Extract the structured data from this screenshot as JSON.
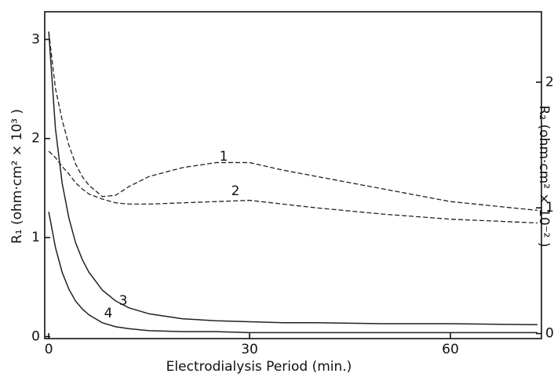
{
  "chart_data": {
    "type": "line",
    "xlabel": "Electrodialysis  Period (min.)",
    "ylabel": "R₁ (ohm·cm² × 10³ )",
    "y2label": "R₂ (ohm·cm² × 10⁻² )",
    "x": [
      0,
      1,
      2,
      3,
      4,
      5,
      6,
      8,
      10,
      12,
      15,
      20,
      25,
      30,
      35,
      40,
      50,
      60,
      73
    ],
    "xlim": [
      -0.6,
      73.6
    ],
    "xticks": [
      0,
      30,
      60
    ],
    "ylim": [
      -0.02,
      3.28
    ],
    "yticks": [
      0,
      1,
      2,
      3
    ],
    "y2lim": [
      -0.04,
      2.56
    ],
    "y2ticks": [
      0,
      1,
      2
    ],
    "grid": false,
    "series": [
      {
        "name": "1",
        "color": "#222",
        "linestyle": "dashed",
        "axis": "y2",
        "values": [
          2.4,
          1.95,
          1.7,
          1.5,
          1.35,
          1.25,
          1.18,
          1.09,
          1.1,
          1.17,
          1.25,
          1.32,
          1.36,
          1.36,
          1.3,
          1.25,
          1.15,
          1.05,
          0.98
        ]
      },
      {
        "name": "2",
        "color": "#222",
        "linestyle": "dashed",
        "axis": "y2",
        "values": [
          1.45,
          1.4,
          1.33,
          1.27,
          1.2,
          1.15,
          1.11,
          1.07,
          1.04,
          1.03,
          1.03,
          1.04,
          1.05,
          1.06,
          1.03,
          1.0,
          0.95,
          0.91,
          0.88
        ]
      },
      {
        "name": "3",
        "color": "#222",
        "linestyle": "solid",
        "values": [
          3.08,
          2.1,
          1.55,
          1.2,
          0.95,
          0.78,
          0.65,
          0.47,
          0.36,
          0.29,
          0.23,
          0.18,
          0.16,
          0.15,
          0.14,
          0.14,
          0.13,
          0.13,
          0.12
        ]
      },
      {
        "name": "4",
        "color": "#222",
        "linestyle": "solid",
        "values": [
          1.26,
          0.9,
          0.65,
          0.48,
          0.36,
          0.28,
          0.22,
          0.14,
          0.1,
          0.08,
          0.06,
          0.05,
          0.05,
          0.04,
          0.04,
          0.04,
          0.04,
          0.04,
          0.04
        ]
      }
    ]
  }
}
